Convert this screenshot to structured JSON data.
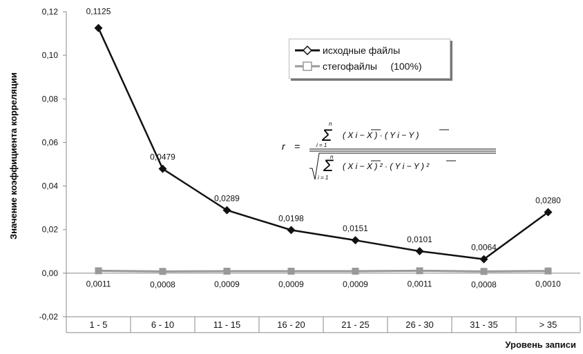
{
  "chart_data": {
    "type": "line",
    "categories": [
      "1 - 5",
      "6 - 10",
      "11 - 15",
      "16 - 20",
      "21 - 25",
      "26 - 30",
      "31 - 35",
      "> 35"
    ],
    "series": [
      {
        "name": "исходные файлы",
        "values": [
          0.1125,
          0.0479,
          0.0289,
          0.0198,
          0.0151,
          0.0101,
          0.0064,
          0.028
        ],
        "labels": [
          "0,1125",
          "0,0479",
          "0,0289",
          "0,0198",
          "0,0151",
          "0,0101",
          "0,0064",
          "0,0280"
        ],
        "color": "#111111",
        "marker": "diamond"
      },
      {
        "name": "стегофайлы     (100%)",
        "values": [
          0.0011,
          0.0008,
          0.0009,
          0.0009,
          0.0009,
          0.0011,
          0.0008,
          0.001
        ],
        "labels": [
          "0,0011",
          "0,0008",
          "0,0009",
          "0,0009",
          "0,0009",
          "0,0011",
          "0,0008",
          "0,0010"
        ],
        "color": "#999999",
        "marker": "square"
      }
    ],
    "ylim": [
      -0.02,
      0.12
    ],
    "yticks": [
      -0.02,
      0.0,
      0.02,
      0.04,
      0.06,
      0.08,
      0.1,
      0.12
    ],
    "ytick_labels": [
      "-0,02",
      "0,00",
      "0,02",
      "0,04",
      "0,06",
      "0,08",
      "0,10",
      "0,12"
    ],
    "xlabel": "Уровень записи",
    "ylabel": "Значение коэффициента корреляции",
    "title": "",
    "grid": false,
    "legend_position": "top-right",
    "annotation_formula": "r = Σ(X_i − X̄)·(Y_i − Ȳ) / √(Σ(X_i − X̄)²·(Y_i − Ȳ)²), i = 1..n"
  }
}
